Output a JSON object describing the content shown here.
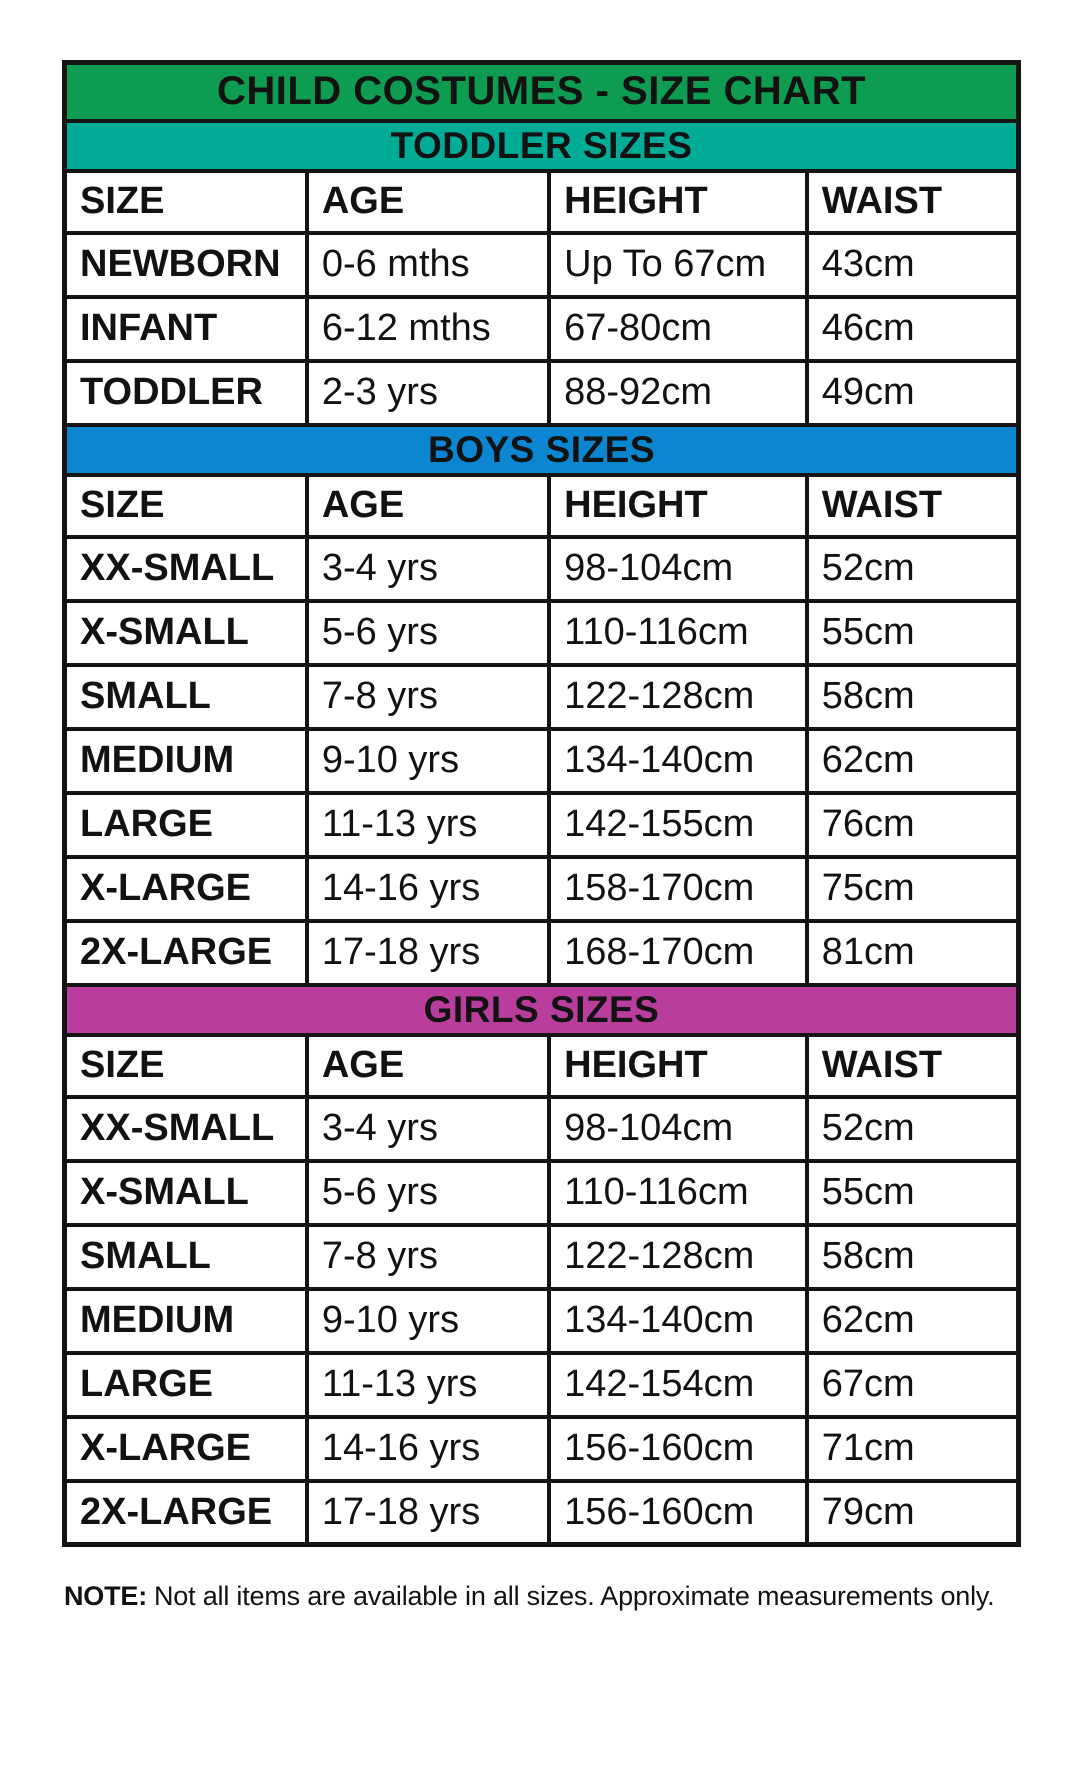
{
  "chart_data": {
    "type": "table",
    "title": "CHILD COSTUMES - SIZE CHART",
    "columns": [
      "SIZE",
      "AGE",
      "HEIGHT",
      "WAIST"
    ],
    "sections": [
      {
        "label": "TODDLER SIZES",
        "band_color": "#00AC96",
        "rows": [
          [
            "NEWBORN",
            "0-6 mths",
            "Up To 67cm",
            "43cm"
          ],
          [
            "INFANT",
            "6-12 mths",
            "67-80cm",
            "46cm"
          ],
          [
            "TODDLER",
            "2-3 yrs",
            "88-92cm",
            "49cm"
          ]
        ]
      },
      {
        "label": "BOYS SIZES",
        "band_color": "#0C86D0",
        "rows": [
          [
            "XX-SMALL",
            "3-4 yrs",
            "98-104cm",
            "52cm"
          ],
          [
            "X-SMALL",
            "5-6 yrs",
            "110-116cm",
            "55cm"
          ],
          [
            "SMALL",
            "7-8 yrs",
            "122-128cm",
            "58cm"
          ],
          [
            "MEDIUM",
            "9-10 yrs",
            "134-140cm",
            "62cm"
          ],
          [
            "LARGE",
            "11-13 yrs",
            "142-155cm",
            "76cm"
          ],
          [
            "X-LARGE",
            "14-16 yrs",
            "158-170cm",
            "75cm"
          ],
          [
            "2X-LARGE",
            "17-18 yrs",
            "168-170cm",
            "81cm"
          ]
        ]
      },
      {
        "label": "GIRLS SIZES",
        "band_color": "#B93D9C",
        "rows": [
          [
            "XX-SMALL",
            "3-4 yrs",
            "98-104cm",
            "52cm"
          ],
          [
            "X-SMALL",
            "5-6 yrs",
            "110-116cm",
            "55cm"
          ],
          [
            "SMALL",
            "7-8 yrs",
            "122-128cm",
            "58cm"
          ],
          [
            "MEDIUM",
            "9-10 yrs",
            "134-140cm",
            "62cm"
          ],
          [
            "LARGE",
            "11-13 yrs",
            "142-154cm",
            "67cm"
          ],
          [
            "X-LARGE",
            "14-16 yrs",
            "156-160cm",
            "71cm"
          ],
          [
            "2X-LARGE",
            "17-18 yrs",
            "156-160cm",
            "79cm"
          ]
        ]
      }
    ],
    "layout_hints": {
      "title_position": "top-band",
      "header_repeats_per_section": true,
      "grid": "on"
    }
  },
  "colors": {
    "title_band_bg": "#0D9C51",
    "toddler_band_bg": "#00AC96",
    "boys_band_bg": "#0C86D0",
    "girls_band_bg": "#B93D9C",
    "border": "#141414",
    "text": "#121212"
  },
  "note": {
    "prefix": "NOTE:",
    "text": "Not all items are available in all sizes. Approximate measurements only."
  }
}
